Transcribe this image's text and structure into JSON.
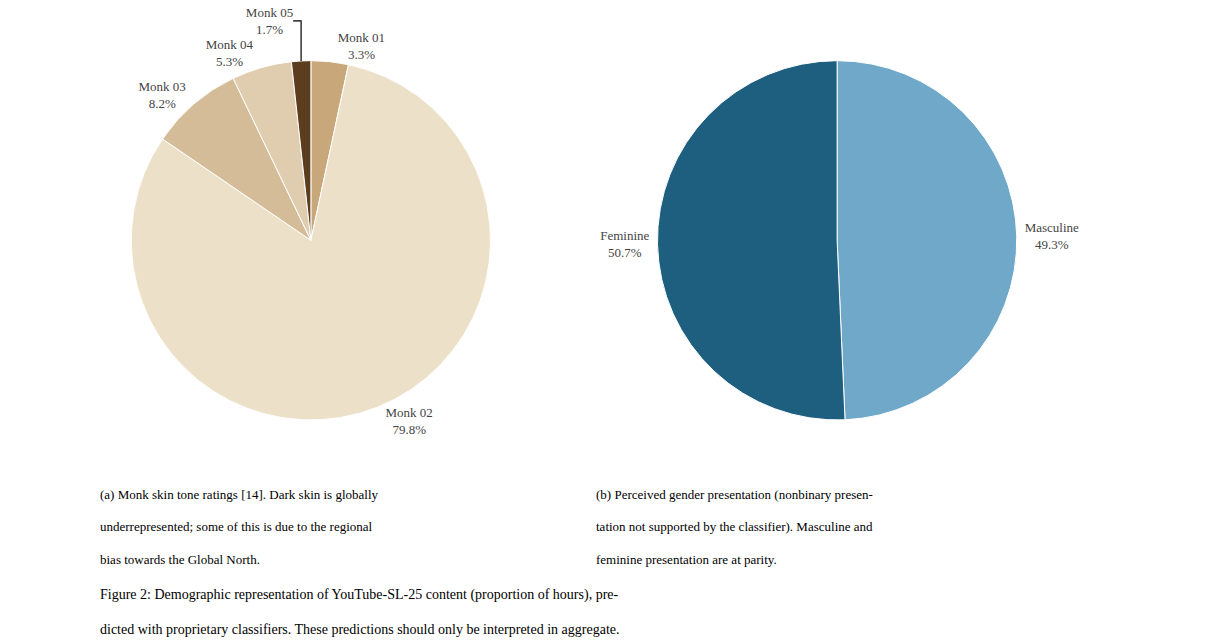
{
  "chart_data": [
    {
      "type": "pie",
      "categories": [
        "Monk 01",
        "Monk 02",
        "Monk 03",
        "Monk 04",
        "Monk 05"
      ],
      "values": [
        3.3,
        79.8,
        8.2,
        5.3,
        1.7
      ],
      "value_labels": [
        "3.3%",
        "79.8%",
        "8.2%",
        "5.3%",
        "1.7%"
      ],
      "colors": [
        "#c8a87a",
        "#ede0c8",
        "#d4bc98",
        "#e0cdb0",
        "#5c3d1e"
      ],
      "data_labels": true,
      "annotations": [
        "(a) Monk skin tone ratings [14]. Dark skin is globally",
        "underrepresented; some of this is due to the regional",
        "bias towards the Global North."
      ]
    },
    {
      "type": "pie",
      "categories": [
        "Masculine",
        "Feminine"
      ],
      "values": [
        49.3,
        50.7
      ],
      "value_labels": [
        "49.3%",
        "50.7%"
      ],
      "colors": [
        "#6fa8c8",
        "#1e5f80"
      ],
      "data_labels": true,
      "annotations": [
        "(b) Perceived gender presentation (nonbinary presen-",
        "tation not supported by the classifier). Masculine and",
        "feminine presentation are at parity."
      ]
    }
  ],
  "caption": [
    "Figure 2: Demographic representation of YouTube-SL-25 content (proportion of hours), pre-",
    "dicted with proprietary classifiers. These predictions should only be interpreted in aggregate."
  ]
}
